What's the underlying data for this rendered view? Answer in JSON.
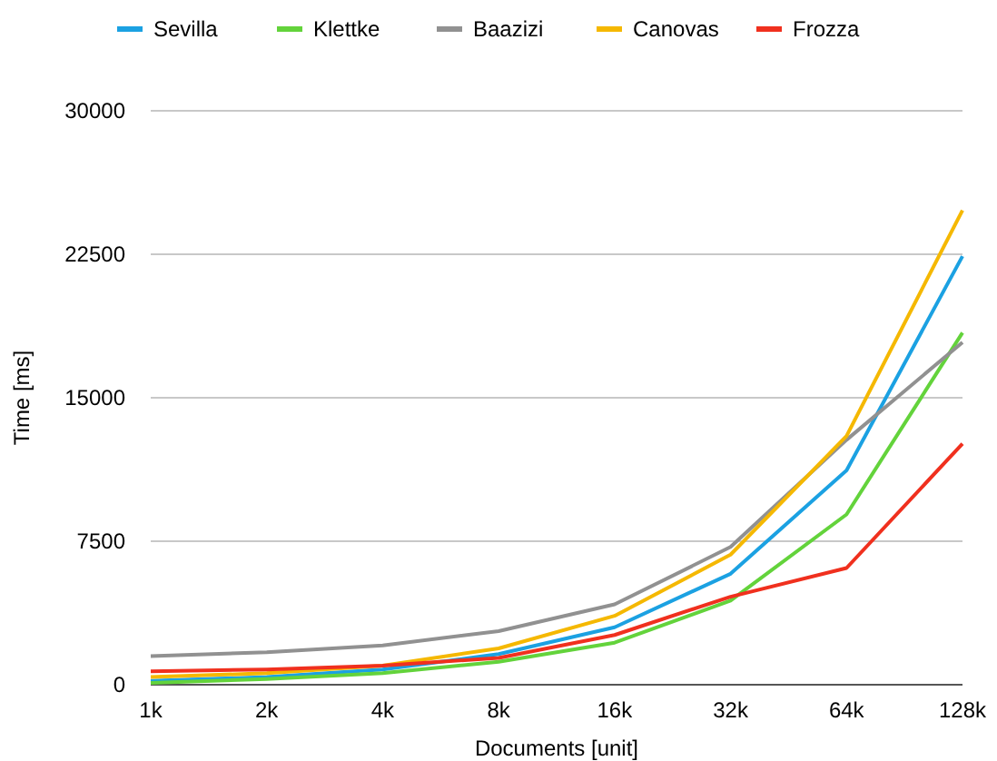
{
  "chart_data": {
    "type": "line",
    "xlabel": "Documents [unit]",
    "ylabel": "Time [ms]",
    "categories": [
      "1k",
      "2k",
      "4k",
      "8k",
      "16k",
      "32k",
      "64k",
      "128k"
    ],
    "series": [
      {
        "name": "Sevilla",
        "color": "#1ba1e2",
        "values": [
          200,
          400,
          800,
          1600,
          3000,
          5800,
          11200,
          22400
        ]
      },
      {
        "name": "Klettke",
        "color": "#63d33b",
        "values": [
          100,
          300,
          600,
          1200,
          2200,
          4400,
          8900,
          18400
        ]
      },
      {
        "name": "Baazizi",
        "color": "#919191",
        "values": [
          1500,
          1700,
          2050,
          2800,
          4200,
          7200,
          12800,
          17900
        ]
      },
      {
        "name": "Canovas",
        "color": "#f5b800",
        "values": [
          400,
          600,
          1000,
          1900,
          3600,
          6800,
          13000,
          24800
        ]
      },
      {
        "name": "Frozza",
        "color": "#f0301e",
        "values": [
          700,
          800,
          1000,
          1400,
          2600,
          4600,
          6100,
          12600
        ]
      }
    ],
    "ylim": [
      0,
      30000
    ],
    "yticks": [
      0,
      7500,
      15000,
      22500,
      30000
    ],
    "grid": "y",
    "legend": "top",
    "marker": "none",
    "line_style": "solid"
  }
}
